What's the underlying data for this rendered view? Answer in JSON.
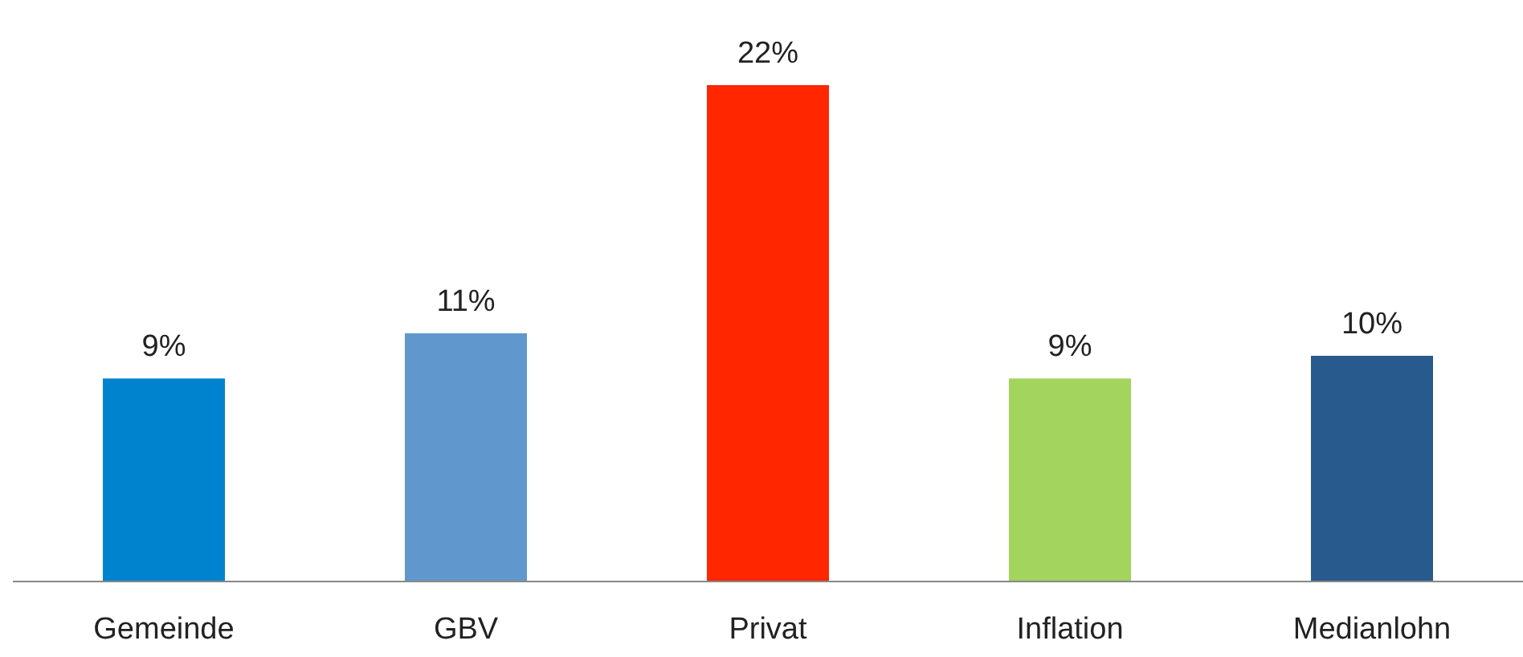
{
  "chart_data": {
    "type": "bar",
    "categories": [
      "Gemeinde",
      "GBV",
      "Privat",
      "Inflation",
      "Medianlohn"
    ],
    "values": [
      9,
      11,
      22,
      9,
      10
    ],
    "colors": [
      "#0083cf",
      "#6097cc",
      "#ff2600",
      "#a2d45e",
      "#285a8e"
    ],
    "value_labels": [
      "9%",
      "11%",
      "22%",
      "9%",
      "10%"
    ],
    "grid": false,
    "legend": false
  }
}
